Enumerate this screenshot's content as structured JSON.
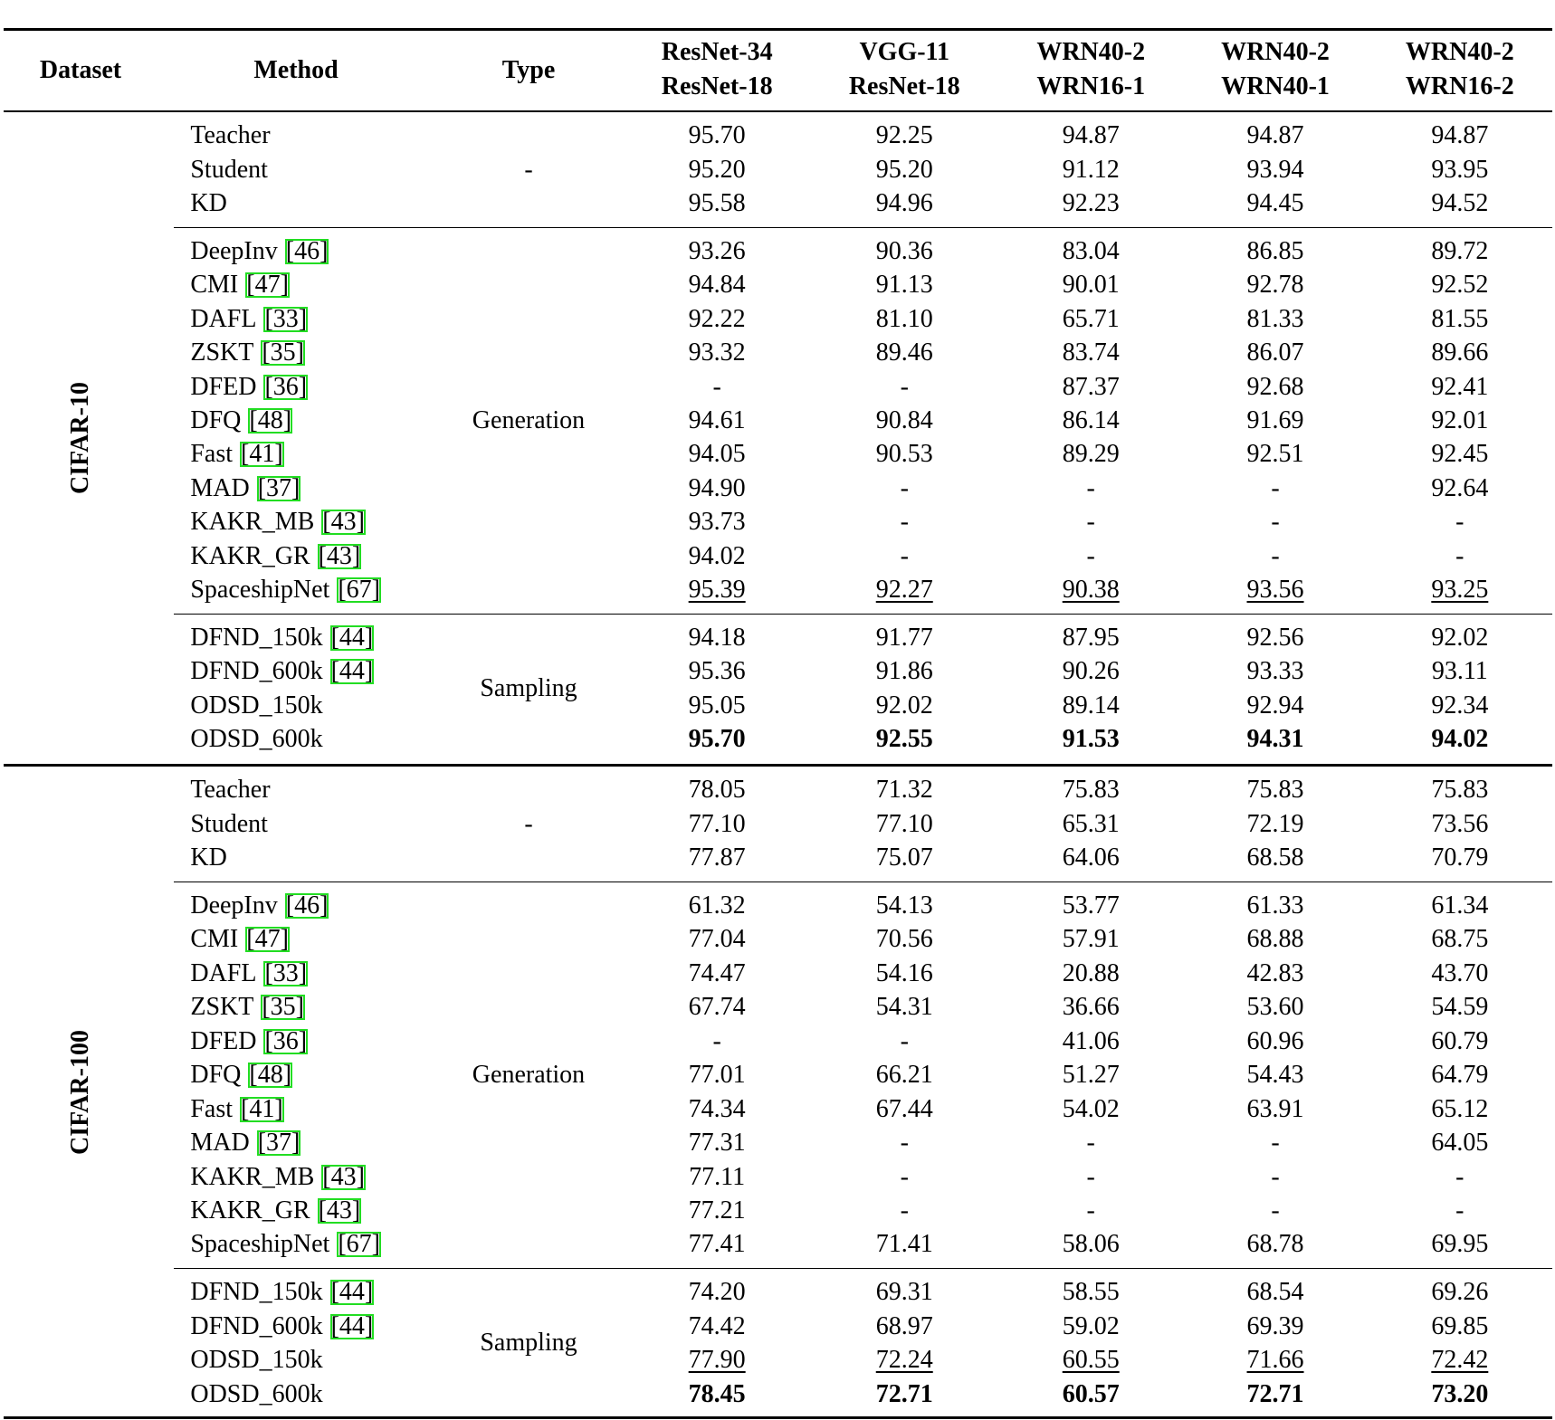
{
  "table": {
    "header": [
      "Dataset",
      "Method",
      "Type"
    ],
    "model_headers": [
      [
        "ResNet-34",
        "ResNet-18"
      ],
      [
        "VGG-11",
        "ResNet-18"
      ],
      [
        "WRN40-2",
        "WRN16-1"
      ],
      [
        "WRN40-2",
        "WRN40-1"
      ],
      [
        "WRN40-2",
        "WRN16-2"
      ]
    ],
    "sections": [
      {
        "dataset": "CIFAR-10",
        "groups": [
          {
            "type": "-",
            "rows": [
              {
                "method": "Teacher",
                "values": [
                  "95.70",
                  "92.25",
                  "94.87",
                  "94.87",
                  "94.87"
                ]
              },
              {
                "method": "Student",
                "values": [
                  "95.20",
                  "95.20",
                  "91.12",
                  "93.94",
                  "93.95"
                ]
              },
              {
                "method": "KD",
                "values": [
                  "95.58",
                  "94.96",
                  "92.23",
                  "94.45",
                  "94.52"
                ]
              }
            ]
          },
          {
            "type": "Generation",
            "rows": [
              {
                "method": "DeepInv",
                "cite": "[46]",
                "values": [
                  "93.26",
                  "90.36",
                  "83.04",
                  "86.85",
                  "89.72"
                ]
              },
              {
                "method": "CMI",
                "cite": "[47]",
                "values": [
                  "94.84",
                  "91.13",
                  "90.01",
                  "92.78",
                  "92.52"
                ]
              },
              {
                "method": "DAFL",
                "cite": "[33]",
                "values": [
                  "92.22",
                  "81.10",
                  "65.71",
                  "81.33",
                  "81.55"
                ]
              },
              {
                "method": "ZSKT",
                "cite": "[35]",
                "values": [
                  "93.32",
                  "89.46",
                  "83.74",
                  "86.07",
                  "89.66"
                ]
              },
              {
                "method": "DFED",
                "cite": "[36]",
                "values": [
                  "-",
                  "-",
                  "87.37",
                  "92.68",
                  "92.41"
                ]
              },
              {
                "method": "DFQ",
                "cite": "[48]",
                "values": [
                  "94.61",
                  "90.84",
                  "86.14",
                  "91.69",
                  "92.01"
                ]
              },
              {
                "method": "Fast",
                "cite": "[41]",
                "values": [
                  "94.05",
                  "90.53",
                  "89.29",
                  "92.51",
                  "92.45"
                ]
              },
              {
                "method": "MAD",
                "cite": "[37]",
                "values": [
                  "94.90",
                  "-",
                  "-",
                  "-",
                  "92.64"
                ]
              },
              {
                "method": "KAKR_MB",
                "cite": "[43]",
                "values": [
                  "93.73",
                  "-",
                  "-",
                  "-",
                  "-"
                ]
              },
              {
                "method": "KAKR_GR",
                "cite": "[43]",
                "values": [
                  "94.02",
                  "-",
                  "-",
                  "-",
                  "-"
                ]
              },
              {
                "method": "SpaceshipNet",
                "cite": "[67]",
                "emphasis": "underline",
                "values": [
                  "95.39",
                  "92.27",
                  "90.38",
                  "93.56",
                  "93.25"
                ]
              }
            ]
          },
          {
            "type": "Sampling",
            "rows": [
              {
                "method": "DFND_150k",
                "cite": "[44]",
                "values": [
                  "94.18",
                  "91.77",
                  "87.95",
                  "92.56",
                  "92.02"
                ]
              },
              {
                "method": "DFND_600k",
                "cite": "[44]",
                "values": [
                  "95.36",
                  "91.86",
                  "90.26",
                  "93.33",
                  "93.11"
                ]
              },
              {
                "method": "ODSD_150k",
                "values": [
                  "95.05",
                  "92.02",
                  "89.14",
                  "92.94",
                  "92.34"
                ]
              },
              {
                "method": "ODSD_600k",
                "emphasis": "bold",
                "values": [
                  "95.70",
                  "92.55",
                  "91.53",
                  "94.31",
                  "94.02"
                ]
              }
            ]
          }
        ]
      },
      {
        "dataset": "CIFAR-100",
        "groups": [
          {
            "type": "-",
            "rows": [
              {
                "method": "Teacher",
                "values": [
                  "78.05",
                  "71.32",
                  "75.83",
                  "75.83",
                  "75.83"
                ]
              },
              {
                "method": "Student",
                "values": [
                  "77.10",
                  "77.10",
                  "65.31",
                  "72.19",
                  "73.56"
                ]
              },
              {
                "method": "KD",
                "values": [
                  "77.87",
                  "75.07",
                  "64.06",
                  "68.58",
                  "70.79"
                ]
              }
            ]
          },
          {
            "type": "Generation",
            "rows": [
              {
                "method": "DeepInv",
                "cite": "[46]",
                "values": [
                  "61.32",
                  "54.13",
                  "53.77",
                  "61.33",
                  "61.34"
                ]
              },
              {
                "method": "CMI",
                "cite": "[47]",
                "values": [
                  "77.04",
                  "70.56",
                  "57.91",
                  "68.88",
                  "68.75"
                ]
              },
              {
                "method": "DAFL",
                "cite": "[33]",
                "values": [
                  "74.47",
                  "54.16",
                  "20.88",
                  "42.83",
                  "43.70"
                ]
              },
              {
                "method": "ZSKT",
                "cite": "[35]",
                "values": [
                  "67.74",
                  "54.31",
                  "36.66",
                  "53.60",
                  "54.59"
                ]
              },
              {
                "method": "DFED",
                "cite": "[36]",
                "values": [
                  "-",
                  "-",
                  "41.06",
                  "60.96",
                  "60.79"
                ]
              },
              {
                "method": "DFQ",
                "cite": "[48]",
                "values": [
                  "77.01",
                  "66.21",
                  "51.27",
                  "54.43",
                  "64.79"
                ]
              },
              {
                "method": "Fast",
                "cite": "[41]",
                "values": [
                  "74.34",
                  "67.44",
                  "54.02",
                  "63.91",
                  "65.12"
                ]
              },
              {
                "method": "MAD",
                "cite": "[37]",
                "values": [
                  "77.31",
                  "-",
                  "-",
                  "-",
                  "64.05"
                ]
              },
              {
                "method": "KAKR_MB",
                "cite": "[43]",
                "values": [
                  "77.11",
                  "-",
                  "-",
                  "-",
                  "-"
                ]
              },
              {
                "method": "KAKR_GR",
                "cite": "[43]",
                "values": [
                  "77.21",
                  "-",
                  "-",
                  "-",
                  "-"
                ]
              },
              {
                "method": "SpaceshipNet",
                "cite": "[67]",
                "values": [
                  "77.41",
                  "71.41",
                  "58.06",
                  "68.78",
                  "69.95"
                ]
              }
            ]
          },
          {
            "type": "Sampling",
            "rows": [
              {
                "method": "DFND_150k",
                "cite": "[44]",
                "values": [
                  "74.20",
                  "69.31",
                  "58.55",
                  "68.54",
                  "69.26"
                ]
              },
              {
                "method": "DFND_600k",
                "cite": "[44]",
                "values": [
                  "74.42",
                  "68.97",
                  "59.02",
                  "69.39",
                  "69.85"
                ]
              },
              {
                "method": "ODSD_150k",
                "emphasis": "underline",
                "values": [
                  "77.90",
                  "72.24",
                  "60.55",
                  "71.66",
                  "72.42"
                ]
              },
              {
                "method": "ODSD_600k",
                "emphasis": "bold",
                "values": [
                  "78.45",
                  "72.71",
                  "60.57",
                  "72.71",
                  "73.20"
                ]
              }
            ]
          }
        ]
      }
    ]
  }
}
